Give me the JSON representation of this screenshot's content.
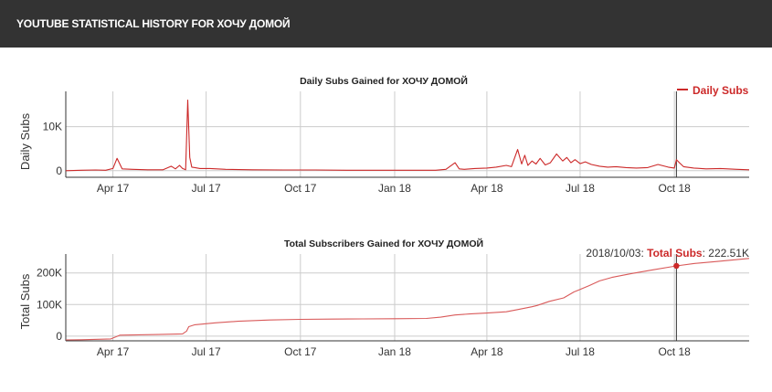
{
  "header": {
    "title": "YOUTUBE STATISTICAL HISTORY FOR ХОЧУ ДОМОЙ"
  },
  "colors": {
    "series": "#cc2929",
    "grid": "#cccccc",
    "axis": "#333333",
    "header_bg": "#333333"
  },
  "chart_data": [
    {
      "type": "line",
      "title": "Daily Subs Gained for ХОЧУ ДОМОЙ",
      "ylabel": "Daily Subs",
      "xlabel": "",
      "legend": {
        "label": "Daily Subs",
        "position": "top-right"
      },
      "x_ticks": [
        "Apr 17",
        "Jul 17",
        "Oct 17",
        "Jan 18",
        "Apr 18",
        "Jul 18",
        "Oct 18"
      ],
      "y_ticks": [
        "0",
        "10K"
      ],
      "y_tick_values": [
        0,
        10000
      ],
      "ylim": [
        -1500,
        18000
      ],
      "xlim": [
        "2017-02-14",
        "2018-12-13"
      ],
      "grid": true,
      "series": [
        {
          "name": "Daily Subs",
          "x": [
            "2017-02-14",
            "2017-03-01",
            "2017-03-15",
            "2017-03-25",
            "2017-04-01",
            "2017-04-05",
            "2017-04-10",
            "2017-04-20",
            "2017-05-05",
            "2017-05-20",
            "2017-05-28",
            "2017-06-01",
            "2017-06-05",
            "2017-06-08",
            "2017-06-11",
            "2017-06-13",
            "2017-06-15",
            "2017-06-17",
            "2017-06-20",
            "2017-06-25",
            "2017-07-05",
            "2017-07-20",
            "2017-08-15",
            "2017-09-15",
            "2017-10-15",
            "2017-11-15",
            "2017-12-15",
            "2018-01-15",
            "2018-02-10",
            "2018-02-15",
            "2018-02-20",
            "2018-03-01",
            "2018-03-05",
            "2018-03-10",
            "2018-03-20",
            "2018-04-01",
            "2018-04-10",
            "2018-04-20",
            "2018-04-25",
            "2018-05-01",
            "2018-05-05",
            "2018-05-08",
            "2018-05-11",
            "2018-05-15",
            "2018-05-19",
            "2018-05-23",
            "2018-05-28",
            "2018-06-02",
            "2018-06-08",
            "2018-06-14",
            "2018-06-18",
            "2018-06-22",
            "2018-06-26",
            "2018-07-01",
            "2018-07-06",
            "2018-07-12",
            "2018-07-20",
            "2018-07-28",
            "2018-08-05",
            "2018-08-15",
            "2018-08-25",
            "2018-09-05",
            "2018-09-15",
            "2018-09-25",
            "2018-10-01",
            "2018-10-03",
            "2018-10-06",
            "2018-10-10",
            "2018-10-20",
            "2018-11-01",
            "2018-11-15",
            "2018-12-01",
            "2018-12-13"
          ],
          "y": [
            0,
            100,
            150,
            100,
            500,
            2800,
            400,
            300,
            200,
            200,
            1000,
            400,
            1200,
            500,
            200,
            16000,
            3000,
            800,
            700,
            500,
            500,
            300,
            200,
            150,
            150,
            100,
            100,
            100,
            100,
            200,
            300,
            1800,
            400,
            300,
            500,
            600,
            800,
            1200,
            900,
            4800,
            1500,
            3500,
            1200,
            2200,
            1500,
            2800,
            1300,
            1800,
            3800,
            2200,
            3000,
            1800,
            2500,
            1600,
            2000,
            1400,
            1000,
            800,
            900,
            700,
            600,
            700,
            1400,
            800,
            600,
            2500,
            1800,
            900,
            600,
            400,
            500,
            300,
            200
          ]
        }
      ]
    },
    {
      "type": "line",
      "title": "Total Subscribers Gained for ХОЧУ ДОМОЙ",
      "ylabel": "Total Subs",
      "xlabel": "",
      "x_ticks": [
        "Apr 17",
        "Jul 17",
        "Oct 17",
        "Jan 18",
        "Apr 18",
        "Jul 18",
        "Oct 18"
      ],
      "y_ticks": [
        "0",
        "100K",
        "200K"
      ],
      "y_tick_values": [
        0,
        100000,
        200000
      ],
      "ylim": [
        -15000,
        260000
      ],
      "xlim": [
        "2017-02-14",
        "2018-12-13"
      ],
      "grid": true,
      "tooltip": {
        "date": "2018/10/03:",
        "label": "Total Subs",
        "value": "222.51K",
        "x": "2018-10-03",
        "y": 222510
      },
      "series": [
        {
          "name": "Total Subs",
          "x": [
            "2017-02-14",
            "2017-03-01",
            "2017-03-30",
            "2017-04-08",
            "2017-05-15",
            "2017-06-08",
            "2017-06-12",
            "2017-06-14",
            "2017-06-20",
            "2017-07-10",
            "2017-08-01",
            "2017-09-01",
            "2017-10-01",
            "2017-11-01",
            "2017-12-01",
            "2018-01-01",
            "2018-02-01",
            "2018-02-15",
            "2018-03-01",
            "2018-03-15",
            "2018-04-01",
            "2018-04-20",
            "2018-05-01",
            "2018-05-15",
            "2018-05-20",
            "2018-06-01",
            "2018-06-15",
            "2018-06-25",
            "2018-07-01",
            "2018-07-10",
            "2018-07-20",
            "2018-08-01",
            "2018-08-20",
            "2018-09-10",
            "2018-10-03",
            "2018-10-20",
            "2018-11-10",
            "2018-12-13"
          ],
          "y": [
            -12000,
            -11500,
            -9000,
            3000,
            5000,
            7000,
            16000,
            30000,
            36000,
            42000,
            47000,
            51000,
            53000,
            54000,
            54500,
            55000,
            56000,
            60000,
            67000,
            70000,
            73000,
            77000,
            84000,
            93000,
            97000,
            110000,
            121000,
            140000,
            148000,
            160000,
            175000,
            186000,
            198000,
            210000,
            222510,
            230000,
            236000,
            246000
          ]
        }
      ]
    }
  ]
}
